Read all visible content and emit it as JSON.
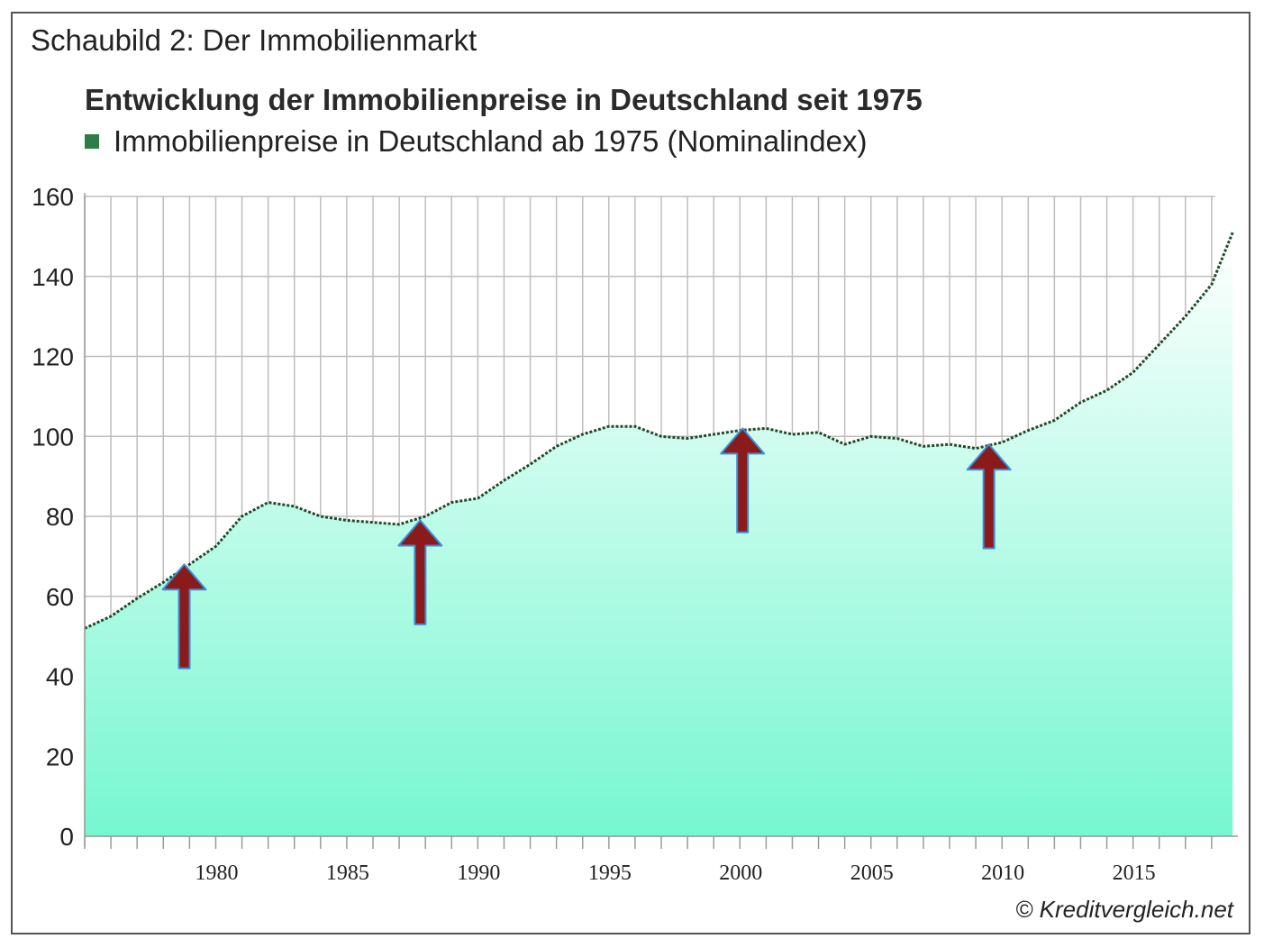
{
  "caption": "Schaubild 2: Der Immobilienmarkt",
  "copyright": "© Kreditvergleich.net",
  "colors": {
    "line": "#1f4a2a",
    "fill_top": "#ffffff",
    "fill_bottom": "#76f7d0",
    "arrow": "#8b1a1a",
    "arrow_outline": "#3b8fd9",
    "legend_swatch": "#2e7d46"
  },
  "chart_data": {
    "type": "area",
    "title": "Entwicklung der Immobilienpreise in Deutschland seit 1975",
    "xlabel": "",
    "ylabel": "",
    "series": [
      {
        "name": "Immobilienpreise in Deutschland ab 1975 (Nominalindex)",
        "x": [
          1975,
          1976,
          1977,
          1978,
          1979,
          1980,
          1981,
          1982,
          1983,
          1984,
          1985,
          1986,
          1987,
          1988,
          1989,
          1990,
          1991,
          1992,
          1993,
          1994,
          1995,
          1996,
          1997,
          1998,
          1999,
          2000,
          2001,
          2002,
          2003,
          2004,
          2005,
          2006,
          2007,
          2008,
          2009,
          2010,
          2011,
          2012,
          2013,
          2014,
          2015,
          2016,
          2017,
          2018,
          2018.8
        ],
        "values": [
          52,
          55,
          59.5,
          63.5,
          68,
          72.5,
          80,
          83.5,
          82.5,
          80,
          79,
          78.5,
          78,
          80,
          83.5,
          84.5,
          89,
          93,
          97.5,
          100.5,
          102.5,
          102.5,
          100,
          99.5,
          100.5,
          101.5,
          102,
          100.5,
          101,
          98,
          100,
          99.5,
          97.5,
          98,
          97,
          98.5,
          101.5,
          104,
          108.5,
          111.5,
          116,
          123,
          130,
          138,
          151
        ]
      }
    ],
    "x_ticks": [
      "1980",
      "1985",
      "1990",
      "1995",
      "2000",
      "2005",
      "2010",
      "2015"
    ],
    "x_tick_values": [
      1980,
      1985,
      1990,
      1995,
      2000,
      2005,
      2010,
      2015
    ],
    "y_ticks": [
      "0",
      "20",
      "40",
      "60",
      "80",
      "100",
      "120",
      "140",
      "160"
    ],
    "y_tick_values": [
      0,
      20,
      40,
      60,
      80,
      100,
      120,
      140,
      160
    ],
    "xlim": [
      1975,
      2019
    ],
    "ylim": [
      0,
      160
    ],
    "grid": true,
    "legend_position": "top-left",
    "annotations": [
      {
        "type": "up-arrow",
        "x": 1978.8,
        "from": 42,
        "to": 68
      },
      {
        "type": "up-arrow",
        "x": 1987.8,
        "from": 53,
        "to": 79
      },
      {
        "type": "up-arrow",
        "x": 2000.1,
        "from": 76,
        "to": 102
      },
      {
        "type": "up-arrow",
        "x": 2009.5,
        "from": 72,
        "to": 98
      }
    ]
  }
}
